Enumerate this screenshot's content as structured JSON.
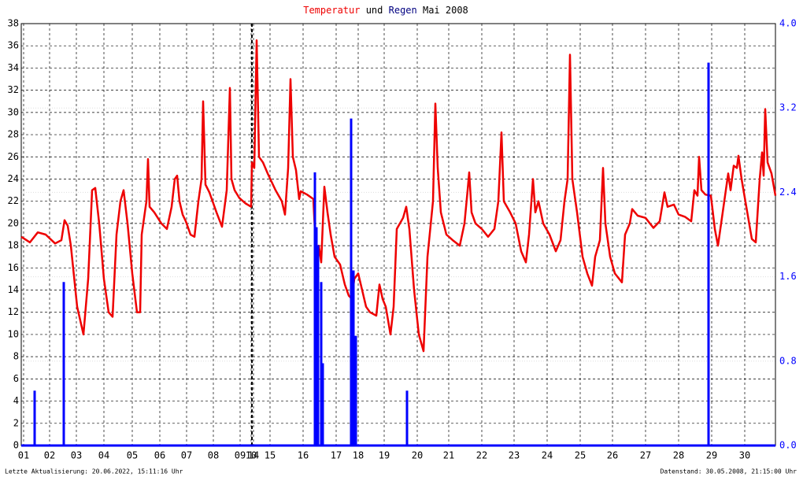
{
  "chart_data": {
    "type": "line",
    "title_joiner": "und",
    "title_suffix": "Mai 2008",
    "x": [
      0,
      1.1,
      2.1,
      3.1,
      4.3,
      5.1,
      5.5,
      5.9,
      6.3,
      7.1,
      7.9,
      8.5,
      9,
      9.4,
      9.9,
      10.5,
      11.1,
      11.6,
      12.1,
      12.6,
      13,
      13.5,
      14.1,
      14.7,
      15.1,
      15.3,
      15.9,
      16.1,
      16.3,
      16.9,
      17.8,
      18.5,
      19.1,
      19.5,
      19.8,
      20.1,
      20.5,
      20.9,
      21.5,
      22,
      22.5,
      22.9,
      23.1,
      23.4,
      23.9,
      24.3,
      24.8,
      25.5,
      26.1,
      26.5,
      26.7,
      27.1,
      27.7,
      28.5,
      29.2,
      29.3,
      29.6,
      29.9,
      30.2,
      30.7,
      31.3,
      32.3,
      33.1,
      33.5,
      33.9,
      34.2,
      34.5,
      34.9,
      35.3,
      35.5,
      36.3,
      37.1,
      37.5,
      37.8,
      38.1,
      38.5,
      38.9,
      39.3,
      39.8,
      40.5,
      41.1,
      41.6,
      42,
      42.3,
      42.8,
      43.3,
      43.8,
      44.3,
      45.1,
      45.5,
      45.9,
      46.3,
      46.9,
      47.3,
      47.7,
      48.5,
      48.9,
      49.3,
      49.9,
      50.5,
      51.1,
      51.6,
      52.3,
      52.6,
      52.9,
      53.3,
      54,
      54.8,
      55.7,
      56.3,
      56.7,
      56.9,
      57.2,
      57.7,
      58.5,
      59.3,
      60.1,
      60.6,
      61,
      61.3,
      62.1,
      62.8,
      63.5,
      64.1,
      64.5,
      65,
      65.3,
      65.7,
      66.3,
      67.1,
      67.9,
      68.5,
      69,
      69.4,
      69.7,
      70,
      70.6,
      71.3,
      71.9,
      72.5,
      72.9,
      73.5,
      73.9,
      74.2,
      74.8,
      75.4,
      76.3,
      76.7,
      77.3,
      77.6,
      78.3,
      79.3,
      80.3,
      81.1,
      81.7,
      82.1,
      82.9,
      83.5,
      84.3,
      85.1,
      85.5,
      85.9,
      86.1,
      86.4,
      86.9,
      87.6,
      88.1,
      88.5,
      89.1,
      89.8,
      90.1,
      90.5,
      90.9,
      91.1,
      91.5,
      92.1,
      92.8,
      93.3,
      93.8,
      94.1,
      94.3,
      94.5,
      94.8,
      95.3,
      95.8
    ],
    "series": [
      {
        "name": "Temperatur",
        "color": "#ee0000",
        "values": [
          18.8,
          18.3,
          19.2,
          19,
          18.2,
          18.5,
          20.3,
          19.8,
          18,
          12.5,
          10,
          15,
          23,
          23.2,
          20,
          15,
          12,
          11.6,
          19,
          22,
          23,
          20,
          15.5,
          12,
          12,
          19,
          22,
          25.8,
          21.5,
          21,
          20,
          19.5,
          21.5,
          24,
          24.3,
          22,
          20.8,
          20.2,
          19,
          18.8,
          22,
          24,
          31,
          23.5,
          22.8,
          22,
          21,
          19.7,
          23,
          32.2,
          24,
          23,
          22.3,
          21.8,
          21.5,
          25.5,
          25,
          36.5,
          26,
          25.5,
          24.5,
          23,
          22,
          20.8,
          25,
          33,
          26,
          24.8,
          22.2,
          22.9,
          22.6,
          22.2,
          16.5,
          18,
          16.5,
          23.3,
          21,
          19,
          17,
          16.3,
          14.5,
          13.5,
          13.2,
          15,
          15.5,
          14,
          12.5,
          12,
          11.7,
          14.5,
          13.2,
          12.5,
          10,
          12.5,
          19.5,
          20.5,
          21.5,
          19.5,
          14,
          10,
          8.5,
          17,
          22,
          30.8,
          25,
          21,
          19,
          18.5,
          18,
          20,
          23,
          24.6,
          21,
          20,
          19.5,
          18.8,
          19.5,
          22,
          28.2,
          22,
          21,
          20,
          17.5,
          16.5,
          19,
          24,
          21,
          22,
          20,
          19,
          17.5,
          18.5,
          22,
          24,
          35.2,
          24,
          21,
          17,
          15.5,
          14.4,
          17,
          18.5,
          25,
          20,
          17,
          15.5,
          14.7,
          19,
          20,
          21.3,
          20.7,
          20.5,
          19.6,
          20.2,
          22.8,
          21.5,
          21.7,
          20.8,
          20.6,
          20.2,
          23,
          22.5,
          26,
          23,
          22.6,
          22.5,
          19.5,
          18,
          21,
          24.5,
          23,
          25.2,
          25,
          26.1,
          24,
          21.5,
          18.6,
          18.3,
          24,
          26.4,
          24.3,
          30.3,
          25.5,
          24.5,
          22.5
        ]
      },
      {
        "name": "Regen",
        "color": "#0000ff",
        "title_color": "#000080",
        "type": "bar",
        "axis": "y2",
        "x": [
          1.7,
          5.4,
          37.3,
          37.5,
          37.7,
          38.1,
          38.3,
          41.9,
          42.2,
          42.5,
          49,
          87.3
        ],
        "values": [
          0.52,
          1.55,
          2.59,
          2.07,
          1.9,
          1.55,
          0.78,
          3.1,
          1.66,
          1.04,
          0.52,
          3.63
        ]
      }
    ],
    "xlim": [
      0,
      95.8
    ],
    "xticks": [
      {
        "value": 0.3,
        "label": "01"
      },
      {
        "value": 3.6,
        "label": "02"
      },
      {
        "value": 7,
        "label": "03"
      },
      {
        "value": 10.5,
        "label": "04"
      },
      {
        "value": 14.1,
        "label": "05"
      },
      {
        "value": 17.6,
        "label": "06"
      },
      {
        "value": 21,
        "label": "07"
      },
      {
        "value": 24.4,
        "label": "08"
      },
      {
        "value": 27.8,
        "label": "09"
      },
      {
        "value": 29.2,
        "label": "10"
      },
      {
        "value": 29.5,
        "label": "14"
      },
      {
        "value": 31.6,
        "label": "15"
      },
      {
        "value": 35.8,
        "label": "16"
      },
      {
        "value": 40,
        "label": "17"
      },
      {
        "value": 42.8,
        "label": "18"
      },
      {
        "value": 46.1,
        "label": "19"
      },
      {
        "value": 50.3,
        "label": "20"
      },
      {
        "value": 54.3,
        "label": "21"
      },
      {
        "value": 58.5,
        "label": "22"
      },
      {
        "value": 62.6,
        "label": "23"
      },
      {
        "value": 66.8,
        "label": "24"
      },
      {
        "value": 71,
        "label": "25"
      },
      {
        "value": 75.1,
        "label": "26"
      },
      {
        "value": 79.3,
        "label": "27"
      },
      {
        "value": 83.5,
        "label": "28"
      },
      {
        "value": 87.7,
        "label": "29"
      },
      {
        "value": 91.9,
        "label": "30"
      }
    ],
    "ylim": [
      0,
      38
    ],
    "yticks": [
      0,
      2,
      4,
      6,
      8,
      10,
      12,
      14,
      16,
      18,
      20,
      22,
      24,
      26,
      28,
      30,
      32,
      34,
      36,
      38
    ],
    "y2lim": [
      0,
      4
    ],
    "y2ticks": [
      {
        "value": 0,
        "label": "0.0"
      },
      0.8,
      1.6,
      2.4,
      3.2,
      {
        "value": 4,
        "label": "4.0"
      }
    ],
    "y2_color": "#0000ff",
    "grid": true,
    "footer_left": "Letzte Aktualisierung: 20.06.2022, 15:11:16 Uhr",
    "footer_right": "Datenstand: 30.05.2008, 21:15:00 Uhr"
  }
}
